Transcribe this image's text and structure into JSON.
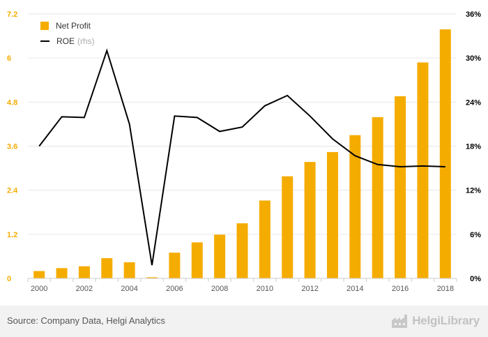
{
  "chart_data": {
    "type": "bar+line",
    "categories": [
      "2000",
      "2001",
      "2002",
      "2003",
      "2004",
      "2005",
      "2006",
      "2007",
      "2008",
      "2009",
      "2010",
      "2011",
      "2012",
      "2013",
      "2014",
      "2015",
      "2016",
      "2017",
      "2018"
    ],
    "x_tick_labels": [
      "2000",
      "2002",
      "2004",
      "2006",
      "2008",
      "2010",
      "2012",
      "2014",
      "2016",
      "2018"
    ],
    "series": [
      {
        "name": "Net Profit",
        "type": "bar",
        "axis": "left",
        "values": [
          0.2,
          0.28,
          0.33,
          0.55,
          0.44,
          0.03,
          0.7,
          0.98,
          1.19,
          1.5,
          2.12,
          2.78,
          3.17,
          3.44,
          3.9,
          4.39,
          4.96,
          5.88,
          6.78
        ]
      },
      {
        "name": "ROE",
        "type": "line",
        "axis": "right",
        "values": [
          18.0,
          22.0,
          21.9,
          31.0,
          21.0,
          1.8,
          22.1,
          21.9,
          20.0,
          20.6,
          23.5,
          24.9,
          22.1,
          19.0,
          16.7,
          15.5,
          15.2,
          15.3,
          15.2
        ]
      }
    ],
    "left_axis": {
      "ticks": [
        0,
        1.2,
        2.4,
        3.6,
        4.8,
        6,
        7.2
      ],
      "ylim": [
        0,
        7.2
      ]
    },
    "right_axis": {
      "ticks": [
        "0%",
        "6%",
        "12%",
        "18%",
        "24%",
        "30%",
        "36%"
      ],
      "ylim": [
        0,
        36
      ]
    },
    "grid": "horizontal",
    "legend_position": "top-left",
    "colors": {
      "bar": "#f5ac00",
      "line": "#000000",
      "left_tick": "#f5ac00",
      "right_tick": "#000000",
      "grid": "#e6e6e6"
    }
  },
  "legend": {
    "bar_label": "Net Profit",
    "line_label": "ROE",
    "line_suffix": "(rhs)"
  },
  "footer": {
    "source": "Source: Company Data, Helgi Analytics",
    "brand": "HelgiLibrary"
  }
}
